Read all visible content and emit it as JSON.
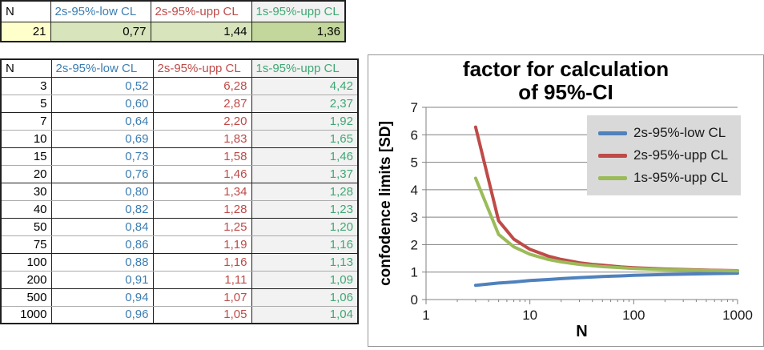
{
  "summary_table": {
    "headers": [
      "N",
      "2s-95%-low CL",
      "2s-95%-upp CL",
      "1s-95%-upp CL"
    ],
    "header_colors": [
      "#000000",
      "#3C7DB1",
      "#BE4B48",
      "#3FA874"
    ],
    "header_fills": [
      "#FFFFFF",
      "#FFFFFF",
      "#FFFFFF",
      "#F2F2F2"
    ],
    "cell_fills": [
      "#FFFFCC",
      "#D7E4BC",
      "#D7E4BC",
      "#C3D69B"
    ],
    "value_colors": [
      "#000000",
      "#000000",
      "#000000",
      "#000000"
    ],
    "rows": [
      [
        "21",
        "0,77",
        "1,44",
        "1,36"
      ]
    ]
  },
  "factor_table": {
    "headers": [
      "N",
      "2s-95%-low CL",
      "2s-95%-upp CL",
      "1s-95%-upp CL"
    ],
    "header_colors": [
      "#000000",
      "#3C7DB1",
      "#BE4B48",
      "#3FA874"
    ],
    "header_fills": [
      "#FFFFFF",
      "#FFFFFF",
      "#FFFFFF",
      "#F2F2F2"
    ],
    "value_colors": [
      "#000000",
      "#3C7DB1",
      "#BE4B48",
      "#3FA874"
    ],
    "gray_column_index": 3,
    "gray_fill": "#F2F2F2",
    "rows": [
      [
        "3",
        "0,52",
        "6,28",
        "4,42"
      ],
      [
        "5",
        "0,60",
        "2,87",
        "2,37"
      ],
      [
        "7",
        "0,64",
        "2,20",
        "1,92"
      ],
      [
        "10",
        "0,69",
        "1,83",
        "1,65"
      ],
      [
        "15",
        "0,73",
        "1,58",
        "1,46"
      ],
      [
        "20",
        "0,76",
        "1,46",
        "1,37"
      ],
      [
        "30",
        "0,80",
        "1,34",
        "1,28"
      ],
      [
        "40",
        "0,82",
        "1,28",
        "1,23"
      ],
      [
        "50",
        "0,84",
        "1,25",
        "1,20"
      ],
      [
        "75",
        "0,86",
        "1,19",
        "1,16"
      ],
      [
        "100",
        "0,88",
        "1,16",
        "1,13"
      ],
      [
        "200",
        "0,91",
        "1,11",
        "1,09"
      ],
      [
        "500",
        "0,94",
        "1,07",
        "1,06"
      ],
      [
        "1000",
        "0,96",
        "1,05",
        "1,04"
      ]
    ]
  },
  "chart_data": {
    "type": "line",
    "title": "factor for calculation of 95%-CI",
    "title_lines": [
      "factor for calculation",
      "of 95%-CI"
    ],
    "xlabel": "N",
    "ylabel": "confodence limits [SD]",
    "x_scale": "log",
    "xlim": [
      1,
      1000
    ],
    "ylim": [
      0,
      7
    ],
    "x_major_ticks": [
      1,
      10,
      100,
      1000
    ],
    "y_ticks": [
      0,
      1,
      2,
      3,
      4,
      5,
      6,
      7
    ],
    "grid": "horizontal",
    "legend_position": "upper-right",
    "legend_bg": "#D9D9D9",
    "gridline_color": "#808080",
    "x": [
      3,
      5,
      7,
      10,
      15,
      20,
      30,
      40,
      50,
      75,
      100,
      200,
      500,
      1000
    ],
    "series": [
      {
        "name": "2s-95%-low CL",
        "color": "#4F81BD",
        "values": [
          0.52,
          0.6,
          0.64,
          0.69,
          0.73,
          0.76,
          0.8,
          0.82,
          0.84,
          0.86,
          0.88,
          0.91,
          0.94,
          0.96
        ]
      },
      {
        "name": "2s-95%-upp CL",
        "color": "#BE4B48",
        "values": [
          6.28,
          2.87,
          2.2,
          1.83,
          1.58,
          1.46,
          1.34,
          1.28,
          1.25,
          1.19,
          1.16,
          1.11,
          1.07,
          1.05
        ]
      },
      {
        "name": "1s-95%-upp CL",
        "color": "#9BBB59",
        "values": [
          4.42,
          2.37,
          1.92,
          1.65,
          1.46,
          1.37,
          1.28,
          1.23,
          1.2,
          1.16,
          1.13,
          1.09,
          1.06,
          1.04
        ]
      }
    ]
  }
}
